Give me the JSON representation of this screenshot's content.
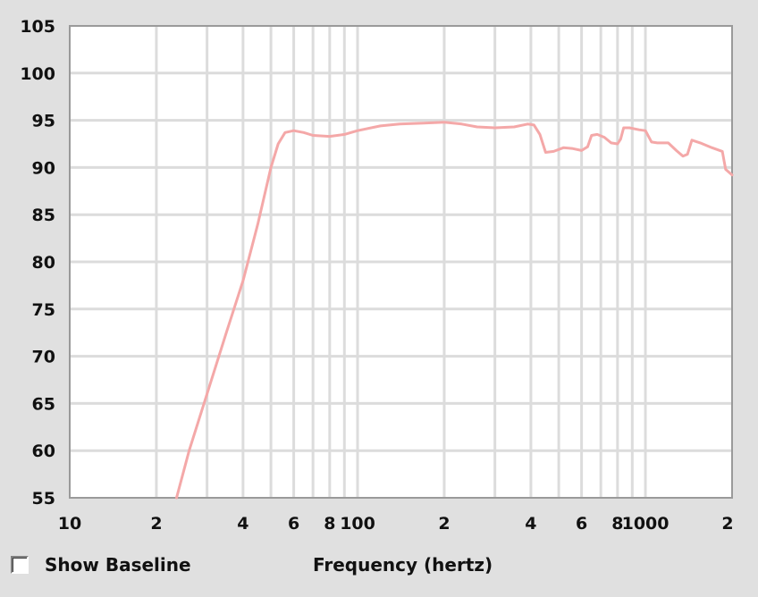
{
  "chart_data": {
    "type": "line",
    "xlabel": "Frequency (hertz)",
    "ylabel": "",
    "xscale": "log",
    "xlim": [
      10,
      2000
    ],
    "ylim": [
      55,
      105
    ],
    "grid": true,
    "y_ticks": [
      "105",
      "100",
      "95",
      "90",
      "85",
      "80",
      "75",
      "70",
      "65",
      "60",
      "55"
    ],
    "x_ticks": [
      {
        "value": 10,
        "label": "10"
      },
      {
        "value": 20,
        "label": "2"
      },
      {
        "value": 40,
        "label": "4"
      },
      {
        "value": 60,
        "label": "6"
      },
      {
        "value": 80,
        "label": "8"
      },
      {
        "value": 100,
        "label": "100"
      },
      {
        "value": 200,
        "label": "2"
      },
      {
        "value": 400,
        "label": "4"
      },
      {
        "value": 600,
        "label": "6"
      },
      {
        "value": 800,
        "label": "8"
      },
      {
        "value": 1000,
        "label": "1000"
      },
      {
        "value": 2000,
        "label": "2"
      }
    ],
    "series": [
      {
        "color": "#f4a8a8",
        "points": [
          [
            23.5,
            55
          ],
          [
            26,
            60
          ],
          [
            30,
            66
          ],
          [
            35,
            72.5
          ],
          [
            40,
            78
          ],
          [
            45,
            84
          ],
          [
            50,
            90
          ],
          [
            53,
            92.5
          ],
          [
            56,
            93.7
          ],
          [
            60,
            93.9
          ],
          [
            65,
            93.7
          ],
          [
            70,
            93.4
          ],
          [
            80,
            93.3
          ],
          [
            90,
            93.5
          ],
          [
            100,
            93.9
          ],
          [
            120,
            94.4
          ],
          [
            140,
            94.6
          ],
          [
            170,
            94.7
          ],
          [
            200,
            94.8
          ],
          [
            230,
            94.6
          ],
          [
            260,
            94.3
          ],
          [
            300,
            94.2
          ],
          [
            350,
            94.3
          ],
          [
            390,
            94.6
          ],
          [
            410,
            94.5
          ],
          [
            430,
            93.5
          ],
          [
            450,
            91.6
          ],
          [
            480,
            91.7
          ],
          [
            520,
            92.1
          ],
          [
            560,
            92.0
          ],
          [
            600,
            91.8
          ],
          [
            630,
            92.2
          ],
          [
            650,
            93.4
          ],
          [
            680,
            93.5
          ],
          [
            720,
            93.2
          ],
          [
            760,
            92.6
          ],
          [
            800,
            92.5
          ],
          [
            820,
            93.0
          ],
          [
            840,
            94.2
          ],
          [
            880,
            94.2
          ],
          [
            950,
            94.0
          ],
          [
            1000,
            93.9
          ],
          [
            1050,
            92.7
          ],
          [
            1100,
            92.6
          ],
          [
            1200,
            92.6
          ],
          [
            1280,
            91.8
          ],
          [
            1350,
            91.2
          ],
          [
            1400,
            91.4
          ],
          [
            1450,
            92.9
          ],
          [
            1550,
            92.6
          ],
          [
            1700,
            92.1
          ],
          [
            1850,
            91.7
          ],
          [
            1900,
            89.8
          ],
          [
            2000,
            89.2
          ]
        ]
      }
    ]
  },
  "controls": {
    "baseline_label": "Show Baseline",
    "baseline_checked": false
  }
}
